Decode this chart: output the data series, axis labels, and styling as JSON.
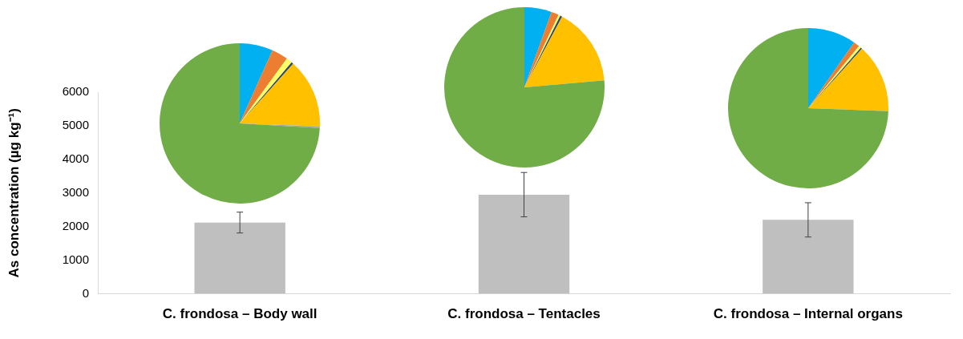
{
  "chart_data": [
    {
      "type": "bar",
      "ylabel": "As concentration (µg kg⁻¹)",
      "categories": [
        "C. frondosa – Body wall",
        "C. frondosa – Tentacles",
        "C. frondosa – Internal organs"
      ],
      "values": [
        2120,
        2950,
        2200
      ],
      "errors": [
        310,
        660,
        510
      ],
      "color": "#bfbfbf",
      "ylim": [
        0,
        6000
      ],
      "yticks": [
        0,
        1000,
        2000,
        3000,
        4000,
        5000,
        6000
      ],
      "grid": false,
      "legend": false
    },
    {
      "type": "pie",
      "categories": [
        null,
        null,
        null,
        null,
        null,
        null,
        null
      ],
      "values": [
        6.7,
        3.3,
        1.2,
        0.4,
        14,
        0.3,
        74.1
      ],
      "colors": [
        "#00b0f0",
        "#ed7d31",
        "#ffff66",
        "#264478",
        "#ffc000",
        "#a5a5a5",
        "#70ad47"
      ],
      "legend": false
    },
    {
      "type": "pie",
      "categories": [
        null,
        null,
        null,
        null,
        null,
        null,
        null
      ],
      "values": [
        5.5,
        1.5,
        0.4,
        0.4,
        15.8,
        0,
        76.4
      ],
      "colors": [
        "#00b0f0",
        "#ed7d31",
        "#ffff66",
        "#264478",
        "#ffc000",
        "#a5a5a5",
        "#70ad47"
      ],
      "legend": false
    },
    {
      "type": "pie",
      "categories": [
        null,
        null,
        null,
        null,
        null,
        null,
        null
      ],
      "values": [
        9.7,
        1.2,
        0.5,
        0.3,
        13.9,
        0,
        74.4
      ],
      "colors": [
        "#00b0f0",
        "#ed7d31",
        "#ffff66",
        "#264478",
        "#ffc000",
        "#a5a5a5",
        "#70ad47"
      ],
      "legend": false
    }
  ]
}
